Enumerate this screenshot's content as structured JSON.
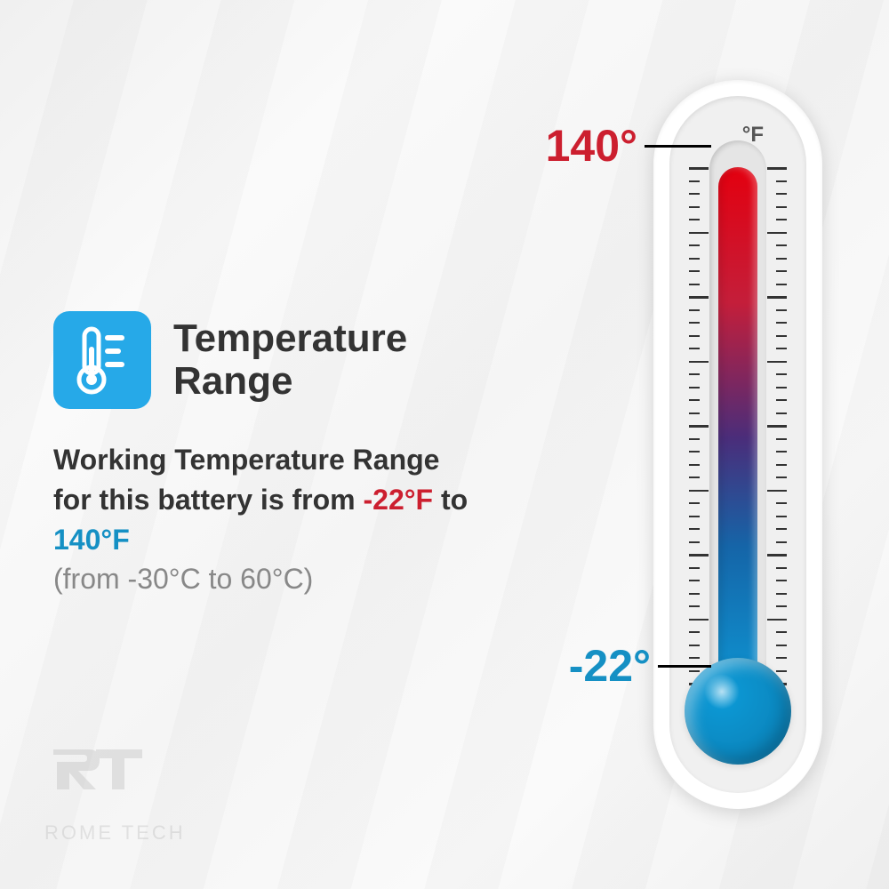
{
  "colors": {
    "icon_bg": "#26a9e8",
    "title": "#333333",
    "desc": "#333333",
    "hot": "#cc1f2f",
    "cold": "#1590c4",
    "celsius": "#888888",
    "logo": "#b8b8b8",
    "unit": "#555555"
  },
  "icon": {
    "bg_color": "#26a9e8"
  },
  "title": "Temperature Range",
  "desc": {
    "prefix": "Working Temperature Range for this battery is from ",
    "cold_value": "-22°F",
    "middle": " to ",
    "hot_value": "140°F",
    "celsius": "(from -30°C to 60°C)"
  },
  "thermometer": {
    "unit": "°F",
    "high_label": "140°",
    "low_label": "-22°",
    "mercury_gradient": {
      "top": "#e3000f",
      "mid1": "#c41e3a",
      "mid2": "#4a2d7a",
      "mid3": "#1565a8",
      "bottom": "#0d9bd8"
    },
    "bulb_color": "#0d9bd8",
    "bulb_dark": "#0a7bb0",
    "ticks": {
      "count": 40,
      "major_every": 5
    }
  },
  "logo": {
    "brand": "ROME TECH"
  }
}
